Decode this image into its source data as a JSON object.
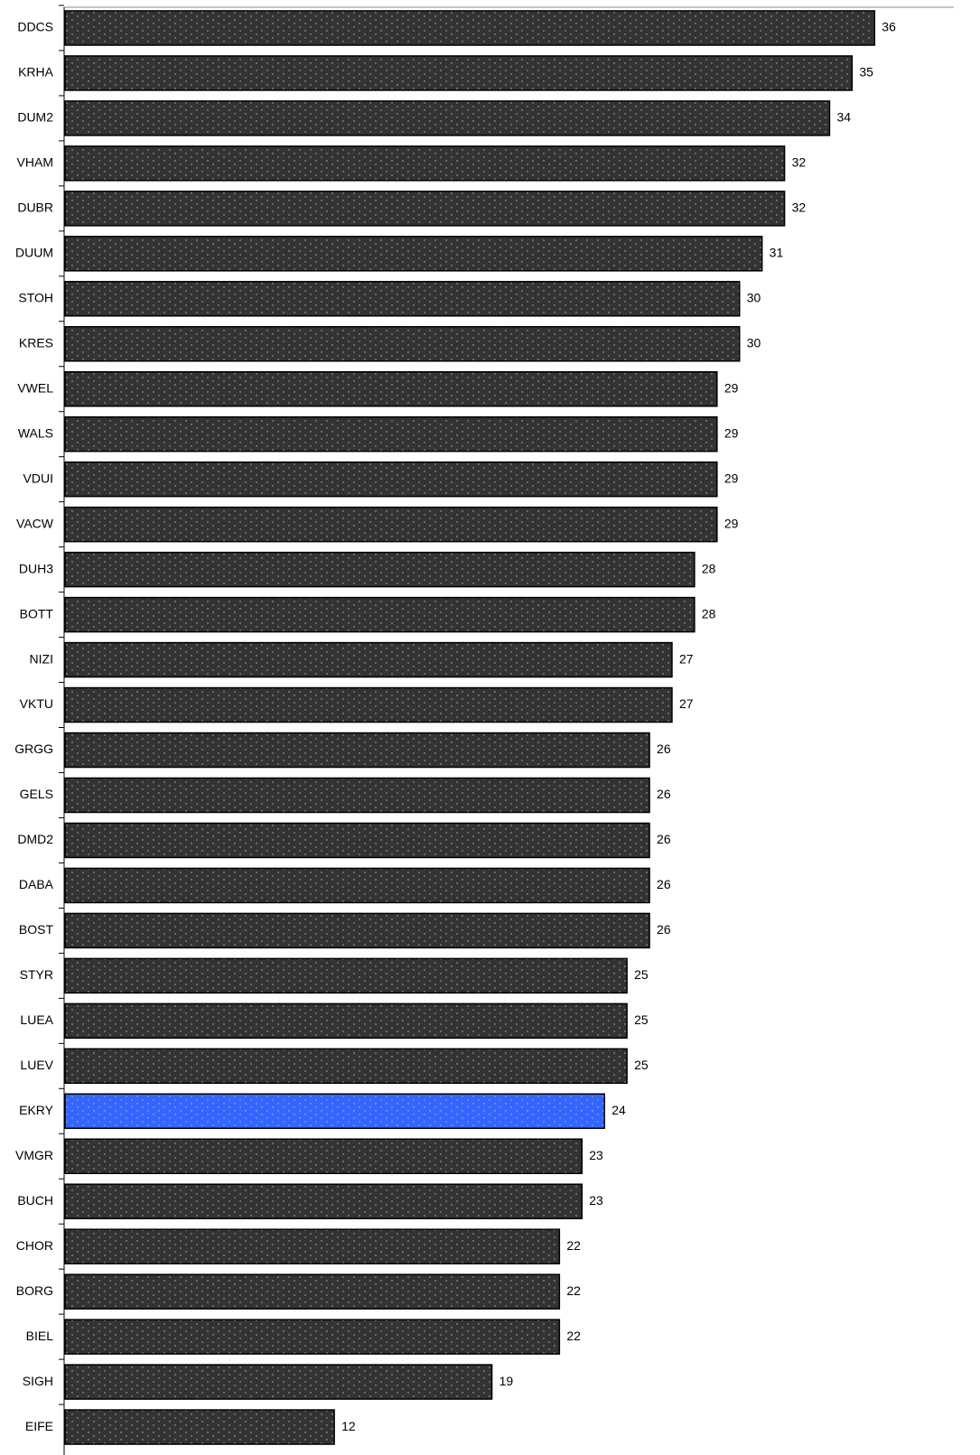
{
  "chart_data": {
    "type": "bar",
    "orientation": "horizontal",
    "categories": [
      "DDCS",
      "KRHA",
      "DUM2",
      "VHAM",
      "DUBR",
      "DUUM",
      "STOH",
      "KRES",
      "VWEL",
      "WALS",
      "VDUI",
      "VACW",
      "DUH3",
      "BOTT",
      "NIZI",
      "VKTU",
      "GRGG",
      "GELS",
      "DMD2",
      "DABA",
      "BOST",
      "STYR",
      "LUEA",
      "LUEV",
      "EKRY",
      "VMGR",
      "BUCH",
      "CHOR",
      "BORG",
      "BIEL",
      "SIGH",
      "EIFE"
    ],
    "values": [
      36,
      35,
      34,
      32,
      32,
      31,
      30,
      30,
      29,
      29,
      29,
      29,
      28,
      28,
      27,
      27,
      26,
      26,
      26,
      26,
      26,
      25,
      25,
      25,
      24,
      23,
      23,
      22,
      22,
      22,
      19,
      12
    ],
    "colors": [
      "#333333",
      "#333333",
      "#333333",
      "#333333",
      "#333333",
      "#333333",
      "#333333",
      "#333333",
      "#333333",
      "#333333",
      "#333333",
      "#333333",
      "#333333",
      "#333333",
      "#333333",
      "#333333",
      "#333333",
      "#333333",
      "#333333",
      "#333333",
      "#333333",
      "#333333",
      "#333333",
      "#333333",
      "#3366ff",
      "#333333",
      "#333333",
      "#333333",
      "#333333",
      "#333333",
      "#333333",
      "#333333"
    ],
    "xlim": [
      0,
      40
    ]
  }
}
